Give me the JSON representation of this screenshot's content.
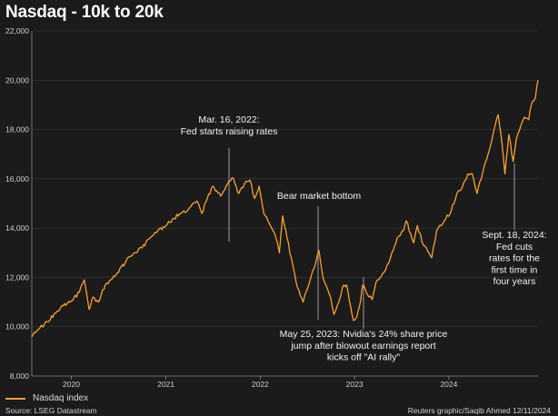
{
  "colors": {
    "background": "#1b1b1b",
    "series": "#f5a233",
    "text": "#d9d9d9",
    "grid": "#3a3a3a"
  },
  "chart_data": {
    "type": "line",
    "title": "Nasdaq - 10k to 20k",
    "xlabel": "",
    "ylabel": "",
    "ylim": [
      8000,
      22000
    ],
    "xlim": [
      "2019-08-01",
      "2024-12-11"
    ],
    "grid": "horizontal",
    "legend": "bottom-left",
    "x_ticks": [
      {
        "label": "2020",
        "date": "2020-01-01"
      },
      {
        "label": "2021",
        "date": "2021-01-01"
      },
      {
        "label": "2022",
        "date": "2022-01-01"
      },
      {
        "label": "2023",
        "date": "2023-01-01"
      },
      {
        "label": "2024",
        "date": "2024-01-01"
      }
    ],
    "y_ticks": [
      {
        "label": "8,000",
        "value": 8000
      },
      {
        "label": "10,000",
        "value": 10000
      },
      {
        "label": "12,000",
        "value": 12000
      },
      {
        "label": "14,000",
        "value": 14000
      },
      {
        "label": "16,000",
        "value": 16000
      },
      {
        "label": "18,000",
        "value": 18000
      },
      {
        "label": "20,000",
        "value": 20000
      },
      {
        "label": "22,000",
        "value": 22000
      }
    ],
    "series": [
      {
        "name": "Nasdaq index",
        "points": [
          [
            "2019-08-01",
            9600
          ],
          [
            "2019-09-01",
            9950
          ],
          [
            "2019-10-01",
            10200
          ],
          [
            "2019-11-01",
            10550
          ],
          [
            "2019-12-01",
            10850
          ],
          [
            "2020-01-01",
            11050
          ],
          [
            "2020-02-01",
            11400
          ],
          [
            "2020-02-20",
            11900
          ],
          [
            "2020-03-10",
            10700
          ],
          [
            "2020-03-25",
            11200
          ],
          [
            "2020-04-15",
            11000
          ],
          [
            "2020-05-01",
            11500
          ],
          [
            "2020-06-01",
            11900
          ],
          [
            "2020-07-01",
            12200
          ],
          [
            "2020-08-01",
            12700
          ],
          [
            "2020-09-01",
            13000
          ],
          [
            "2020-10-01",
            13200
          ],
          [
            "2020-11-01",
            13600
          ],
          [
            "2020-12-01",
            13900
          ],
          [
            "2021-01-01",
            14100
          ],
          [
            "2021-02-01",
            14400
          ],
          [
            "2021-03-01",
            14600
          ],
          [
            "2021-04-01",
            14800
          ],
          [
            "2021-04-15",
            15000
          ],
          [
            "2021-05-01",
            15100
          ],
          [
            "2021-05-20",
            14600
          ],
          [
            "2021-06-10",
            15200
          ],
          [
            "2021-07-01",
            15700
          ],
          [
            "2021-08-01",
            15300
          ],
          [
            "2021-09-01",
            15900
          ],
          [
            "2021-09-20",
            16000
          ],
          [
            "2021-10-10",
            15400
          ],
          [
            "2021-11-01",
            15800
          ],
          [
            "2021-11-22",
            15950
          ],
          [
            "2021-12-10",
            15200
          ],
          [
            "2021-12-28",
            15700
          ],
          [
            "2022-01-15",
            14600
          ],
          [
            "2022-02-05",
            14200
          ],
          [
            "2022-02-25",
            13800
          ],
          [
            "2022-03-16",
            13000
          ],
          [
            "2022-03-29",
            14500
          ],
          [
            "2022-04-15",
            13600
          ],
          [
            "2022-05-01",
            12800
          ],
          [
            "2022-05-20",
            11800
          ],
          [
            "2022-06-16",
            11000
          ],
          [
            "2022-07-05",
            11600
          ],
          [
            "2022-08-16",
            13100
          ],
          [
            "2022-09-01",
            12000
          ],
          [
            "2022-09-30",
            11200
          ],
          [
            "2022-10-13",
            10500
          ],
          [
            "2022-11-01",
            11000
          ],
          [
            "2022-11-15",
            11600
          ],
          [
            "2022-12-01",
            11700
          ],
          [
            "2022-12-28",
            10250
          ],
          [
            "2023-01-10",
            10400
          ],
          [
            "2023-01-25",
            11100
          ],
          [
            "2023-02-02",
            11700
          ],
          [
            "2023-02-20",
            11300
          ],
          [
            "2023-03-10",
            11100
          ],
          [
            "2023-03-25",
            11800
          ],
          [
            "2023-04-10",
            12000
          ],
          [
            "2023-05-01",
            12300
          ],
          [
            "2023-05-25",
            13000
          ],
          [
            "2023-06-15",
            13600
          ],
          [
            "2023-07-10",
            13900
          ],
          [
            "2023-07-20",
            14300
          ],
          [
            "2023-08-18",
            13400
          ],
          [
            "2023-09-01",
            14100
          ],
          [
            "2023-09-25",
            13300
          ],
          [
            "2023-10-27",
            12800
          ],
          [
            "2023-11-15",
            13900
          ],
          [
            "2023-12-15",
            14300
          ],
          [
            "2024-01-10",
            14700
          ],
          [
            "2024-02-01",
            15400
          ],
          [
            "2024-02-20",
            15600
          ],
          [
            "2024-03-01",
            15900
          ],
          [
            "2024-03-15",
            16200
          ],
          [
            "2024-04-01",
            16200
          ],
          [
            "2024-04-19",
            15400
          ],
          [
            "2024-05-10",
            16200
          ],
          [
            "2024-06-01",
            17000
          ],
          [
            "2024-06-20",
            17800
          ],
          [
            "2024-07-10",
            18600
          ],
          [
            "2024-07-25",
            17400
          ],
          [
            "2024-08-05",
            16200
          ],
          [
            "2024-08-20",
            17800
          ],
          [
            "2024-09-06",
            16700
          ],
          [
            "2024-09-18",
            17600
          ],
          [
            "2024-10-01",
            18000
          ],
          [
            "2024-10-20",
            18500
          ],
          [
            "2024-11-05",
            18400
          ],
          [
            "2024-11-15",
            19000
          ],
          [
            "2024-12-01",
            19300
          ],
          [
            "2024-12-11",
            20000
          ]
        ]
      }
    ],
    "annotations": [
      {
        "lines": [
          "Mar. 16, 2022:",
          "Fed starts raising rates"
        ],
        "date": "2022-03-16",
        "value": 13000
      },
      {
        "lines": [
          "Bear market bottom"
        ],
        "date": "2022-12-28",
        "value": 10250
      },
      {
        "lines": [
          "May 25, 2023: Nvidia's 24% share price",
          "jump after blowout earnings report",
          "kicks off \"AI rally\""
        ],
        "date": "2023-05-25",
        "value": 13000
      },
      {
        "lines": [
          "Sept. 18, 2024:",
          "Fed cuts",
          "rates for the",
          "first time in",
          "four years"
        ],
        "date": "2024-09-18",
        "value": 17600
      }
    ]
  },
  "legend": {
    "label": "Nasdaq index"
  },
  "footer": {
    "source": "Source: LSEG Datastream",
    "credit": "Reuters graphic/Saqib Ahmed 12/11/2024"
  }
}
